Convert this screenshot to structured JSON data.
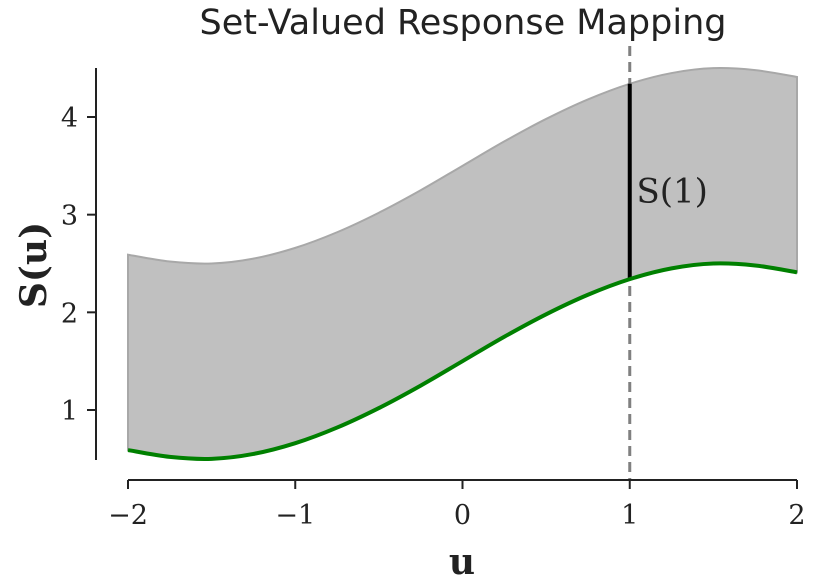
{
  "chart_data": {
    "type": "area",
    "title": "Set-Valued Response Mapping",
    "xlabel": "u",
    "ylabel": "S(u)",
    "xlim": [
      -2,
      2
    ],
    "ylim": [
      0.5,
      4.5
    ],
    "xticks": [
      -2,
      -1,
      0,
      1,
      2
    ],
    "xtick_labels": [
      "−2",
      "−1",
      "0",
      "1",
      "2"
    ],
    "yticks": [
      1,
      2,
      3,
      4
    ],
    "ytick_labels": [
      "1",
      "2",
      "3",
      "4"
    ],
    "grid": false,
    "band": {
      "x": [
        -2.0,
        -1.75,
        -1.5,
        -1.25,
        -1.0,
        -0.75,
        -0.5,
        -0.25,
        0.0,
        0.25,
        0.5,
        0.75,
        1.0,
        1.25,
        1.5,
        1.75,
        2.0
      ],
      "lower": [
        0.59,
        0.52,
        0.5,
        0.55,
        0.66,
        0.82,
        1.02,
        1.25,
        1.5,
        1.75,
        1.98,
        2.18,
        2.34,
        2.45,
        2.5,
        2.48,
        2.41
      ],
      "upper": [
        2.59,
        2.52,
        2.5,
        2.55,
        2.66,
        2.82,
        3.02,
        3.25,
        3.5,
        3.75,
        3.98,
        4.18,
        4.34,
        4.45,
        4.5,
        4.48,
        4.41
      ],
      "fill_color": "#c0c0c0",
      "edge_color": "#a8a8a8"
    },
    "series": [
      {
        "x": [
          -2.0,
          -1.75,
          -1.5,
          -1.25,
          -1.0,
          -0.75,
          -0.5,
          -0.25,
          0.0,
          0.25,
          0.5,
          0.75,
          1.0,
          1.25,
          1.5,
          1.75,
          2.0
        ],
        "values": [
          0.59,
          0.52,
          0.5,
          0.55,
          0.66,
          0.82,
          1.02,
          1.25,
          1.5,
          1.75,
          1.98,
          2.18,
          2.34,
          2.45,
          2.5,
          2.48,
          2.41
        ],
        "color": "#008000"
      }
    ],
    "vline": {
      "x": 1,
      "style": "dashed",
      "color": "#808080"
    },
    "segment": {
      "x": 1,
      "y": [
        2.34,
        4.34
      ],
      "color": "#000000"
    },
    "annotation": {
      "text": "S(1)",
      "x": 1.1,
      "y": 3.25
    }
  }
}
